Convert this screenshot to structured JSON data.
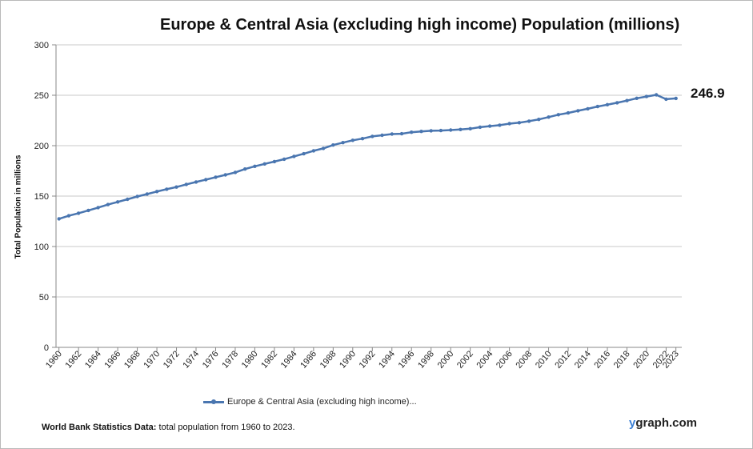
{
  "title": "Europe & Central Asia (excluding high income) Population (millions)",
  "callout": "246.9",
  "source_label": "World Bank Statistics Data:",
  "source_text": "total population from 1960 to 2023.",
  "brand_y": "y",
  "brand_rest": "graph.com",
  "colors": {
    "series": "#4a76b0",
    "grid": "#c8c8c8",
    "axis": "#888888"
  },
  "chart_data": {
    "type": "line",
    "title": "Europe & Central Asia (excluding high income) Population (millions)",
    "xlabel": "",
    "ylabel": "Total Population  in millions",
    "ylim": [
      0,
      300
    ],
    "yticks": [
      0,
      50,
      100,
      150,
      200,
      250,
      300
    ],
    "xtick_labels": [
      "1960",
      "1962",
      "1964",
      "1966",
      "1968",
      "1970",
      "1972",
      "1974",
      "1976",
      "1978",
      "1980",
      "1982",
      "1984",
      "1986",
      "1988",
      "1990",
      "1992",
      "1994",
      "1996",
      "1998",
      "2000",
      "2002",
      "2004",
      "2006",
      "2008",
      "2010",
      "2012",
      "2014",
      "2016",
      "2018",
      "2020",
      "2022",
      "2023"
    ],
    "grid": true,
    "legend_position": "bottom",
    "series": [
      {
        "name": "Europe & Central Asia (excluding high income)...",
        "x": [
          1960,
          1961,
          1962,
          1963,
          1964,
          1965,
          1966,
          1967,
          1968,
          1969,
          1970,
          1971,
          1972,
          1973,
          1974,
          1975,
          1976,
          1977,
          1978,
          1979,
          1980,
          1981,
          1982,
          1983,
          1984,
          1985,
          1986,
          1987,
          1988,
          1989,
          1990,
          1991,
          1992,
          1993,
          1994,
          1995,
          1996,
          1997,
          1998,
          1999,
          2000,
          2001,
          2002,
          2003,
          2004,
          2005,
          2006,
          2007,
          2008,
          2009,
          2010,
          2011,
          2012,
          2013,
          2014,
          2015,
          2016,
          2017,
          2018,
          2019,
          2020,
          2021,
          2022,
          2023
        ],
        "values": [
          127.5,
          130.5,
          133.0,
          135.8,
          138.6,
          141.6,
          144.2,
          146.8,
          149.6,
          152.0,
          154.5,
          156.8,
          159.0,
          161.6,
          164.0,
          166.3,
          168.7,
          171.0,
          173.5,
          176.8,
          179.5,
          181.9,
          184.2,
          186.6,
          189.4,
          192.0,
          194.9,
          197.3,
          200.6,
          203.0,
          205.3,
          207.0,
          209.2,
          210.3,
          211.5,
          211.8,
          213.3,
          214.1,
          214.8,
          215.0,
          215.5,
          216.0,
          216.8,
          218.3,
          219.4,
          220.3,
          221.8,
          222.8,
          224.3,
          226.0,
          228.3,
          230.7,
          232.5,
          234.6,
          236.6,
          238.8,
          240.6,
          242.5,
          244.7,
          247.0,
          248.7,
          250.4,
          246.1,
          246.9
        ]
      }
    ]
  }
}
